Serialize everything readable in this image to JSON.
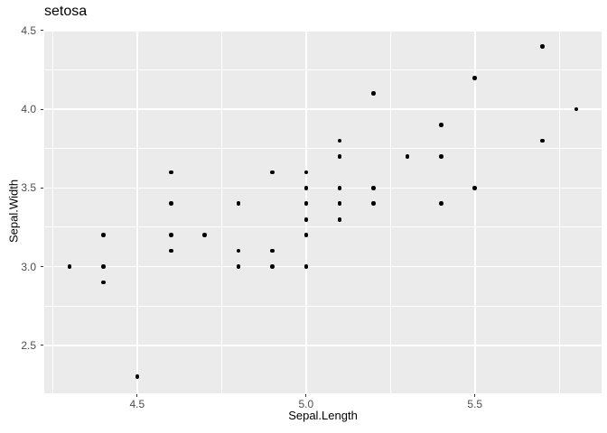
{
  "figure": {
    "title": "setosa"
  },
  "chart_data": {
    "type": "scatter",
    "title": "setosa",
    "xlabel": "Sepal.Length",
    "ylabel": "Sepal.Width",
    "xlim": [
      4.225,
      5.875
    ],
    "ylim": [
      2.195,
      4.505
    ],
    "x_ticks": [
      {
        "value": 4.5,
        "label": "4.5"
      },
      {
        "value": 5.0,
        "label": "5.0"
      },
      {
        "value": 5.5,
        "label": "5.5"
      }
    ],
    "y_ticks": [
      {
        "value": 2.5,
        "label": "2.5"
      },
      {
        "value": 3.0,
        "label": "3.0"
      },
      {
        "value": 3.5,
        "label": "3.5"
      },
      {
        "value": 4.0,
        "label": "4.0"
      },
      {
        "value": 4.5,
        "label": "4.5"
      }
    ],
    "x_minor_gridlines": [
      4.25,
      4.75,
      5.25,
      5.75
    ],
    "y_minor_gridlines": [
      2.75,
      3.25,
      3.75,
      4.25
    ],
    "grid": "on",
    "legend": "none",
    "points": [
      [
        4.3,
        3.0
      ],
      [
        4.4,
        2.9
      ],
      [
        4.4,
        3.0
      ],
      [
        4.4,
        3.2
      ],
      [
        4.5,
        2.3
      ],
      [
        4.6,
        3.1
      ],
      [
        4.6,
        3.2
      ],
      [
        4.6,
        3.4
      ],
      [
        4.6,
        3.6
      ],
      [
        4.7,
        3.2
      ],
      [
        4.8,
        3.0
      ],
      [
        4.8,
        3.1
      ],
      [
        4.8,
        3.4
      ],
      [
        4.9,
        3.0
      ],
      [
        4.9,
        3.1
      ],
      [
        4.9,
        3.6
      ],
      [
        5.0,
        3.0
      ],
      [
        5.0,
        3.2
      ],
      [
        5.0,
        3.3
      ],
      [
        5.0,
        3.4
      ],
      [
        5.0,
        3.5
      ],
      [
        5.0,
        3.6
      ],
      [
        5.1,
        3.3
      ],
      [
        5.1,
        3.4
      ],
      [
        5.1,
        3.5
      ],
      [
        5.1,
        3.7
      ],
      [
        5.1,
        3.8
      ],
      [
        5.2,
        3.4
      ],
      [
        5.2,
        3.5
      ],
      [
        5.2,
        4.1
      ],
      [
        5.3,
        3.7
      ],
      [
        5.4,
        3.4
      ],
      [
        5.4,
        3.7
      ],
      [
        5.4,
        3.9
      ],
      [
        5.5,
        3.5
      ],
      [
        5.5,
        4.2
      ],
      [
        5.7,
        3.8
      ],
      [
        5.7,
        4.4
      ],
      [
        5.8,
        4.0
      ]
    ],
    "colors": {
      "panel_bg": "#EBEBEB",
      "grid_major": "#FFFFFF",
      "grid_minor": "#FFFFFF",
      "point": "#000000",
      "tick_label": "#4D4D4D",
      "tick_mark": "#333333",
      "axis_title": "#000000",
      "title": "#000000"
    }
  }
}
